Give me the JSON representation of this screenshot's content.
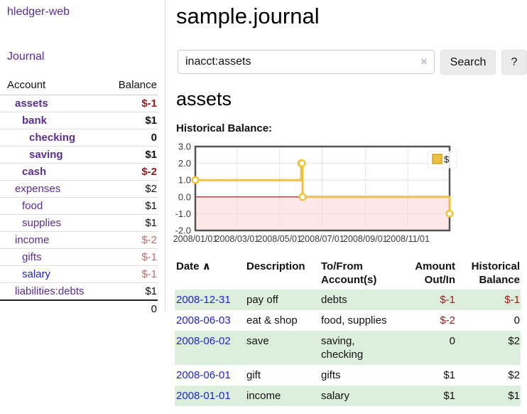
{
  "colors": {
    "link_purple": "#5c2d91",
    "link_blue": "#2323cc",
    "negative_strong": "#971a1a",
    "negative_muted": "#c46a6a",
    "row_green": "#dceedc",
    "series_gold": "#edc240",
    "button_gray": "#ebebeb"
  },
  "app": {
    "title": "hledger-web"
  },
  "sidebar": {
    "journal_link": "Journal",
    "accounts": {
      "headers": {
        "account": "Account",
        "balance": "Balance"
      },
      "rows": [
        {
          "name": "assets",
          "balance": "$-1",
          "indent": 1,
          "bold": true,
          "neg": "strong"
        },
        {
          "name": "bank",
          "balance": "$1",
          "indent": 2,
          "bold": true,
          "neg": "none"
        },
        {
          "name": "checking",
          "balance": "0",
          "indent": 3,
          "bold": true,
          "neg": "none"
        },
        {
          "name": "saving",
          "balance": "$1",
          "indent": 3,
          "bold": true,
          "neg": "none"
        },
        {
          "name": "cash",
          "balance": "$-2",
          "indent": 2,
          "bold": true,
          "neg": "strong"
        },
        {
          "name": "expenses",
          "balance": "$2",
          "indent": 1,
          "bold": false,
          "neg": "none"
        },
        {
          "name": "food",
          "balance": "$1",
          "indent": 2,
          "bold": false,
          "neg": "none"
        },
        {
          "name": "supplies",
          "balance": "$1",
          "indent": 2,
          "bold": false,
          "neg": "none"
        },
        {
          "name": "income",
          "balance": "$-2",
          "indent": 1,
          "bold": false,
          "neg": "muted"
        },
        {
          "name": "gifts",
          "balance": "$-1",
          "indent": 2,
          "bold": false,
          "neg": "muted"
        },
        {
          "name": "salary",
          "balance": "$-1",
          "indent": 2,
          "bold": false,
          "neg": "muted",
          "visited": true
        },
        {
          "name": "liabilities:debts",
          "balance": "$1",
          "indent": 1,
          "bold": false,
          "neg": "none"
        }
      ],
      "total": "0"
    }
  },
  "main": {
    "title": "sample.journal",
    "search": {
      "value": "inacct:assets",
      "clear_icon": "×",
      "search_button": "Search",
      "help_button": "?"
    },
    "account_heading": "assets",
    "chart_label": "Historical Balance:"
  },
  "chart_data": {
    "type": "line",
    "title": "Historical Balance",
    "step": true,
    "series": [
      {
        "name": "$",
        "color": "#edc240",
        "points": [
          [
            "2008-01-01",
            1
          ],
          [
            "2008-06-01",
            2
          ],
          [
            "2008-06-02",
            2
          ],
          [
            "2008-06-03",
            0
          ],
          [
            "2008-12-31",
            -1
          ]
        ]
      }
    ],
    "x_range": [
      "2008-01-01",
      "2008-12-31"
    ],
    "ylim": [
      -2,
      3
    ],
    "y_ticks": [
      "3.0",
      "2.0",
      "1.0",
      "0.0",
      "-1.0",
      "-2.0"
    ],
    "x_ticks": [
      "2008/01/01",
      "2008/03/01",
      "2008/05/01",
      "2008/07/01",
      "2008/09/01",
      "2008/11/01"
    ],
    "legend": {
      "label": "$",
      "position": "top-right"
    },
    "grid": true,
    "negative_region_color": "#fbd7d7",
    "zero_line_color": "#8b1010"
  },
  "transactions": {
    "headers": {
      "date": "Date",
      "sort_icon": "∧",
      "description": "Description",
      "accounts": "To/From Account(s)",
      "amount": "Amount Out/In",
      "balance": "Historical Balance"
    },
    "rows": [
      {
        "date": "2008-12-31",
        "description": "pay off",
        "accounts": "debts",
        "amount": "$-1",
        "amount_neg": true,
        "balance": "$-1",
        "balance_neg": true
      },
      {
        "date": "2008-06-03",
        "description": "eat & shop",
        "accounts": "food, supplies",
        "amount": "$-2",
        "amount_neg": true,
        "balance": "0",
        "balance_neg": false
      },
      {
        "date": "2008-06-02",
        "description": "save",
        "accounts": "saving, checking",
        "amount": "0",
        "amount_neg": false,
        "balance": "$2",
        "balance_neg": false
      },
      {
        "date": "2008-06-01",
        "description": "gift",
        "accounts": "gifts",
        "amount": "$1",
        "amount_neg": false,
        "balance": "$2",
        "balance_neg": false
      },
      {
        "date": "2008-01-01",
        "description": "income",
        "accounts": "salary",
        "amount": "$1",
        "amount_neg": false,
        "balance": "$1",
        "balance_neg": false
      }
    ]
  }
}
